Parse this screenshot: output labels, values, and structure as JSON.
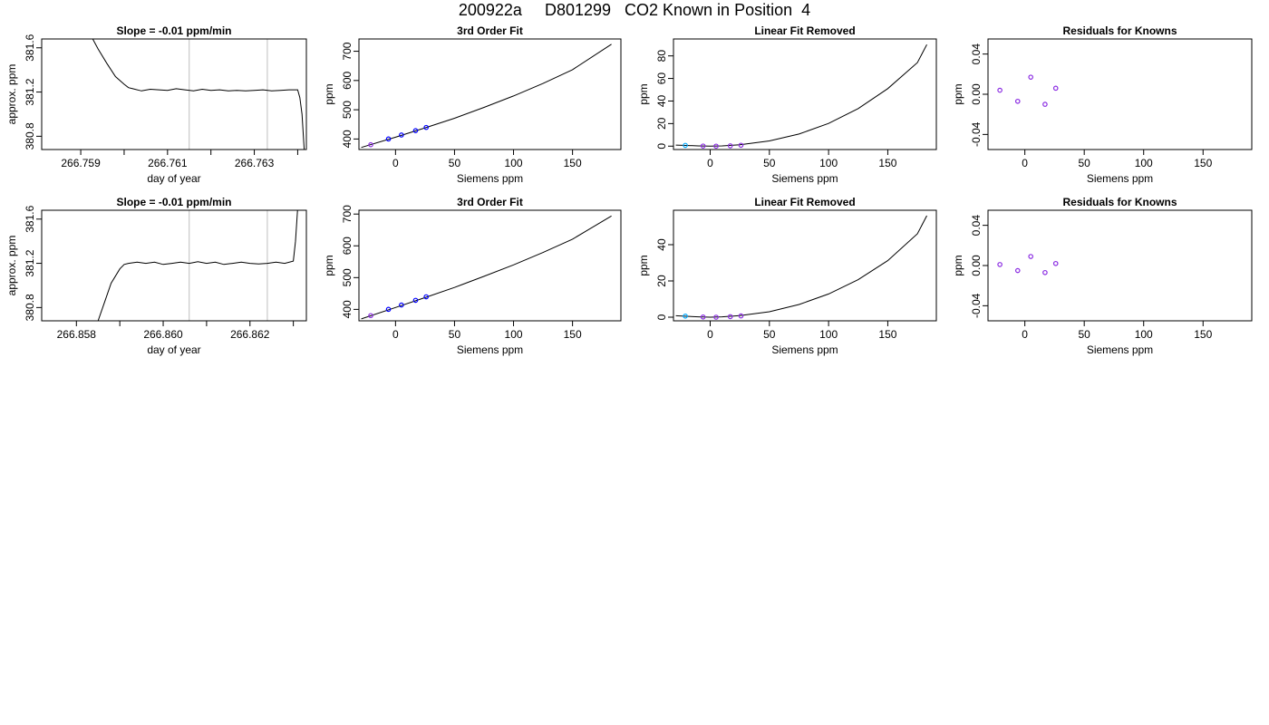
{
  "page": {
    "title": "200922a     D801299   CO2 Known in Position  4"
  },
  "colors": {
    "line": "#000000",
    "blue": "#0000ff",
    "purple": "#8a2be2",
    "cyan": "#00aaff",
    "grey": "#bebebe",
    "red": "#ff0000"
  },
  "chart_data": [
    {
      "id": "r1c1",
      "type": "line",
      "title": "Slope =  -0.01  ppm/min",
      "xlabel": "day of year",
      "ylabel": "approx. ppm",
      "xlim": [
        266.7581,
        266.7642
      ],
      "ylim": [
        380.68,
        381.68
      ],
      "xticks": [
        266.759,
        266.761,
        266.763
      ],
      "xtick_labels": [
        "266.759",
        "266.761",
        "266.763"
      ],
      "xticks_unlabeled": [
        266.76,
        266.762,
        266.764
      ],
      "yticks": [
        380.8,
        381.2,
        381.6
      ],
      "ytick_labels": [
        "380.8",
        "381.2",
        "381.6"
      ],
      "vlines": [
        266.7615,
        266.7633
      ],
      "series": [
        {
          "x": [
            266.75925,
            266.7594,
            266.7596,
            266.7598,
            266.76,
            266.7601,
            266.7602,
            266.7604,
            266.7606,
            266.7608,
            266.761,
            266.7612,
            266.7614,
            266.7616,
            266.7618,
            266.762,
            266.7622,
            266.7624,
            266.7626,
            266.7628,
            266.763,
            266.7632,
            266.7634,
            266.7636,
            266.7638,
            266.764,
            266.76405,
            266.7641,
            266.76415
          ],
          "y": [
            381.7,
            381.59,
            381.46,
            381.34,
            381.27,
            381.24,
            381.23,
            381.21,
            381.225,
            381.22,
            381.215,
            381.23,
            381.22,
            381.21,
            381.225,
            381.215,
            381.22,
            381.21,
            381.215,
            381.21,
            381.215,
            381.22,
            381.21,
            381.215,
            381.22,
            381.22,
            381.15,
            381.0,
            380.68
          ]
        }
      ]
    },
    {
      "id": "r1c2",
      "type": "scatter",
      "title": "3rd Order Fit",
      "xlabel": "Siemens ppm",
      "ylabel": "ppm",
      "xlim": [
        -31,
        191
      ],
      "ylim": [
        364,
        742
      ],
      "xticks": [
        0,
        50,
        100,
        150
      ],
      "yticks": [
        400,
        500,
        600,
        700
      ],
      "points": {
        "x": [
          -21,
          -6,
          5,
          17,
          26
        ],
        "y": [
          380.4,
          400.1,
          413.7,
          428.5,
          439.5
        ],
        "colors": [
          "purple",
          "blue",
          "blue",
          "blue",
          "blue"
        ]
      },
      "curve": {
        "x": [
          -29,
          0,
          25,
          50,
          75,
          100,
          125,
          150,
          183
        ],
        "y": [
          371,
          406,
          438,
          471,
          508,
          547,
          590,
          637,
          724
        ]
      }
    },
    {
      "id": "r1c3",
      "type": "scatter",
      "title": "Linear Fit Removed",
      "xlabel": "Siemens ppm",
      "ylabel": "ppm",
      "xlim": [
        -31,
        191
      ],
      "ylim": [
        -3,
        95
      ],
      "xticks": [
        0,
        50,
        100,
        150
      ],
      "yticks": [
        0,
        20,
        40,
        60,
        80
      ],
      "points": {
        "x": [
          -21,
          -6,
          5,
          17,
          26
        ],
        "y": [
          0.7,
          0.1,
          0.0,
          0.3,
          0.8
        ],
        "colors": [
          "cyan",
          "purple",
          "purple",
          "purple",
          "purple"
        ]
      },
      "curve": {
        "x": [
          -29,
          -20,
          -10,
          0,
          10,
          25,
          50,
          75,
          100,
          125,
          150,
          175,
          183
        ],
        "y": [
          0.9,
          0.6,
          0.2,
          0,
          0.2,
          1.2,
          4.6,
          10.7,
          20.1,
          33.3,
          51,
          74,
          90
        ]
      }
    },
    {
      "id": "r1c4",
      "type": "scatter",
      "title": "Residuals for Knowns",
      "xlabel": "Siemens ppm",
      "ylabel": "ppm",
      "xlim": [
        -31,
        191
      ],
      "ylim": [
        -0.055,
        0.055
      ],
      "xticks": [
        0,
        50,
        100,
        150
      ],
      "yticks": [
        -0.04,
        0.0,
        0.04
      ],
      "ytick_labels": [
        "-0.04",
        "0.00",
        "0.04"
      ],
      "points": {
        "x": [
          -21,
          -6,
          5,
          17,
          26
        ],
        "y": [
          0.004,
          -0.007,
          0.017,
          -0.01,
          0.006
        ],
        "colors": [
          "purple",
          "purple",
          "purple",
          "purple",
          "purple"
        ]
      }
    },
    {
      "id": "r2c1",
      "type": "line",
      "title": "Slope =  -0.01  ppm/min",
      "xlabel": "day of year",
      "ylabel": "approx. ppm",
      "xlim": [
        266.8572,
        266.8633
      ],
      "ylim": [
        380.68,
        381.68
      ],
      "xticks": [
        266.858,
        266.86,
        266.862
      ],
      "xtick_labels": [
        "266.858",
        "266.860",
        "266.862"
      ],
      "xticks_unlabeled": [
        266.859,
        266.861,
        266.863
      ],
      "yticks": [
        380.8,
        381.2,
        381.6
      ],
      "ytick_labels": [
        "380.8",
        "381.2",
        "381.6"
      ],
      "vlines": [
        266.8606,
        266.8624
      ],
      "series": [
        {
          "x": [
            266.8585,
            266.85865,
            266.8588,
            266.859,
            266.8591,
            266.8592,
            266.8594,
            266.8596,
            266.8598,
            266.86,
            266.8602,
            266.8604,
            266.8606,
            266.8608,
            266.861,
            266.8612,
            266.8614,
            266.8616,
            266.8618,
            266.862,
            266.8622,
            266.8624,
            266.8626,
            266.8628,
            266.863,
            266.86305,
            266.8631
          ],
          "y": [
            380.68,
            380.85,
            381.02,
            381.15,
            381.19,
            381.2,
            381.21,
            381.2,
            381.21,
            381.19,
            381.2,
            381.21,
            381.2,
            381.215,
            381.2,
            381.21,
            381.19,
            381.2,
            381.21,
            381.2,
            381.195,
            381.2,
            381.21,
            381.2,
            381.22,
            381.4,
            381.7
          ]
        }
      ]
    },
    {
      "id": "r2c2",
      "type": "scatter",
      "title": "3rd Order Fit",
      "xlabel": "Siemens ppm",
      "ylabel": "ppm",
      "xlim": [
        -31,
        191
      ],
      "ylim": [
        364,
        712
      ],
      "xticks": [
        0,
        50,
        100,
        150
      ],
      "yticks": [
        400,
        500,
        600,
        700
      ],
      "points": {
        "x": [
          -21,
          -6,
          5,
          17,
          26
        ],
        "y": [
          380.4,
          400.1,
          413.7,
          428.5,
          439.5
        ],
        "colors": [
          "purple",
          "blue",
          "blue",
          "blue",
          "blue"
        ]
      },
      "curve": {
        "x": [
          -29,
          0,
          25,
          50,
          75,
          100,
          125,
          150,
          183
        ],
        "y": [
          370,
          406,
          437,
          469,
          504,
          540,
          579,
          621,
          694
        ]
      }
    },
    {
      "id": "r2c3",
      "type": "scatter",
      "title": "Linear Fit Removed",
      "xlabel": "Siemens ppm",
      "ylabel": "ppm",
      "xlim": [
        -31,
        191
      ],
      "ylim": [
        -2,
        59
      ],
      "xticks": [
        0,
        50,
        100,
        150
      ],
      "yticks": [
        0,
        20,
        40
      ],
      "points": {
        "x": [
          -21,
          -6,
          5,
          17,
          26
        ],
        "y": [
          0.6,
          0.1,
          0.0,
          0.3,
          0.7
        ],
        "colors": [
          "cyan",
          "purple",
          "purple",
          "purple",
          "purple"
        ]
      },
      "curve": {
        "x": [
          -29,
          -20,
          -10,
          0,
          10,
          25,
          50,
          75,
          100,
          125,
          150,
          175,
          183
        ],
        "y": [
          0.8,
          0.5,
          0.2,
          0,
          0.2,
          0.9,
          3.0,
          7.0,
          12.8,
          20.7,
          31.2,
          46,
          56
        ]
      }
    },
    {
      "id": "r2c4",
      "type": "scatter",
      "title": "Residuals for Knowns",
      "xlabel": "Siemens ppm",
      "ylabel": "ppm",
      "xlim": [
        -31,
        191
      ],
      "ylim": [
        -0.055,
        0.055
      ],
      "xticks": [
        0,
        50,
        100,
        150
      ],
      "yticks": [
        -0.04,
        0.0,
        0.04
      ],
      "ytick_labels": [
        "-0.04",
        "0.00",
        "0.04"
      ],
      "points": {
        "x": [
          -21,
          -6,
          5,
          17,
          26
        ],
        "y": [
          0.001,
          -0.005,
          0.009,
          -0.007,
          0.002
        ],
        "colors": [
          "purple",
          "purple",
          "purple",
          "purple",
          "purple"
        ]
      }
    }
  ]
}
